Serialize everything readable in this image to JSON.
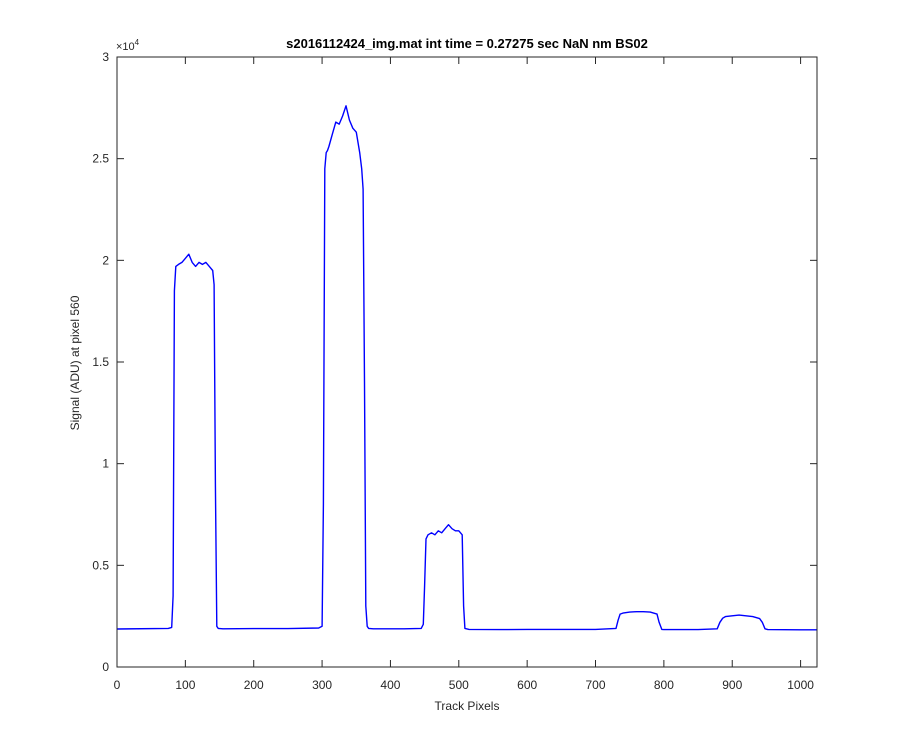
{
  "chart_data": {
    "type": "line",
    "title": "s2016112424_img.mat int time = 0.27275 sec  NaN nm BS02",
    "xlabel": "Track Pixels",
    "ylabel": "Signal (ADU) at pixel 560",
    "y_exponent_label": "×10",
    "y_exponent_power": "4",
    "xlim": [
      0,
      1024
    ],
    "ylim": [
      0,
      30000
    ],
    "x_ticks": [
      0,
      100,
      200,
      300,
      400,
      500,
      600,
      700,
      800,
      900,
      1000
    ],
    "x_tick_labels": [
      "0",
      "100",
      "200",
      "300",
      "400",
      "500",
      "600",
      "700",
      "800",
      "900",
      "1000"
    ],
    "y_ticks": [
      0,
      5000,
      10000,
      15000,
      20000,
      25000,
      30000
    ],
    "y_tick_labels": [
      "0",
      "0.5",
      "1",
      "1.5",
      "2",
      "2.5",
      "3"
    ],
    "grid": false,
    "series": [
      {
        "color": "#0000ff",
        "x": [
          0,
          75,
          80,
          82,
          84,
          86,
          90,
          95,
          100,
          105,
          110,
          115,
          120,
          125,
          130,
          135,
          140,
          142,
          144,
          146,
          148,
          155,
          200,
          250,
          295,
          300,
          302,
          304,
          306,
          308,
          310,
          315,
          320,
          325,
          330,
          335,
          340,
          345,
          350,
          355,
          358,
          360,
          362,
          364,
          366,
          368,
          375,
          420,
          445,
          448,
          450,
          452,
          455,
          460,
          465,
          470,
          475,
          480,
          485,
          490,
          495,
          500,
          505,
          507,
          509,
          515,
          560,
          600,
          650,
          700,
          730,
          733,
          736,
          740,
          750,
          760,
          770,
          780,
          790,
          793,
          797,
          800,
          850,
          878,
          882,
          886,
          890,
          900,
          910,
          920,
          930,
          940,
          944,
          948,
          952,
          1000,
          1024
        ],
        "y": [
          1870,
          1900,
          1950,
          3500,
          18500,
          19700,
          19800,
          19900,
          20100,
          20300,
          19900,
          19700,
          19900,
          19800,
          19900,
          19700,
          19500,
          18800,
          9000,
          2000,
          1900,
          1880,
          1890,
          1890,
          1920,
          2000,
          8000,
          24500,
          25300,
          25400,
          25600,
          26200,
          26800,
          26700,
          27100,
          27600,
          26900,
          26500,
          26300,
          25300,
          24500,
          23500,
          14000,
          3000,
          2000,
          1900,
          1880,
          1880,
          1900,
          2100,
          4000,
          6300,
          6500,
          6600,
          6500,
          6700,
          6600,
          6800,
          7000,
          6800,
          6700,
          6700,
          6500,
          3000,
          1900,
          1850,
          1840,
          1850,
          1850,
          1850,
          1900,
          2300,
          2600,
          2650,
          2700,
          2720,
          2720,
          2700,
          2600,
          2200,
          1850,
          1840,
          1840,
          1880,
          2200,
          2400,
          2480,
          2520,
          2550,
          2520,
          2480,
          2380,
          2200,
          1880,
          1840,
          1830,
          1830
        ]
      }
    ]
  }
}
